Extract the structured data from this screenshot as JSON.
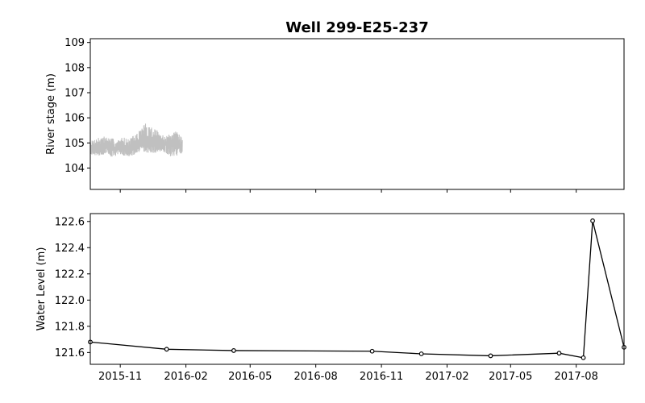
{
  "chart_data": [
    {
      "type": "line",
      "title": "Well 299-E25-237",
      "ylabel": "River stage (m)",
      "ylim": [
        103.15,
        109.15
      ],
      "yticks": [
        104,
        105,
        106,
        107,
        108,
        109
      ],
      "xlim": [
        "2015-09-20",
        "2017-10-07"
      ],
      "xticks": [
        "2015-11",
        "2016-02",
        "2016-05",
        "2016-08",
        "2016-11",
        "2017-02",
        "2017-05",
        "2017-08"
      ],
      "show_xtick_labels": false,
      "grid": false,
      "series": [
        {
          "color": "#c0c0c0",
          "x_range": [
            "2015-09-20",
            "2016-01-27"
          ],
          "envelope": [
            [
              "2015-09-20",
              104.8,
              104.55,
              105.05
            ],
            [
              "2015-09-28",
              104.8,
              104.5,
              105.2
            ],
            [
              "2015-10-05",
              104.75,
              104.5,
              105.3
            ],
            [
              "2015-10-12",
              104.9,
              104.55,
              105.25
            ],
            [
              "2015-10-20",
              104.8,
              104.45,
              105.2
            ],
            [
              "2015-10-28",
              104.75,
              104.5,
              105.1
            ],
            [
              "2015-11-05",
              104.85,
              104.5,
              105.25
            ],
            [
              "2015-11-12",
              104.8,
              104.45,
              105.15
            ],
            [
              "2015-11-20",
              104.8,
              104.5,
              105.3
            ],
            [
              "2015-11-28",
              105.0,
              104.6,
              105.5
            ],
            [
              "2015-12-05",
              105.1,
              104.6,
              105.8
            ],
            [
              "2015-12-12",
              105.0,
              104.6,
              105.75
            ],
            [
              "2015-12-20",
              104.95,
              104.6,
              105.6
            ],
            [
              "2015-12-28",
              104.9,
              104.55,
              105.3
            ],
            [
              "2016-01-05",
              105.0,
              104.55,
              105.35
            ],
            [
              "2016-01-12",
              104.95,
              104.45,
              105.3
            ],
            [
              "2016-01-20",
              104.9,
              104.5,
              105.6
            ],
            [
              "2016-01-27",
              104.85,
              104.6,
              105.2
            ]
          ]
        }
      ]
    },
    {
      "type": "line",
      "title": "",
      "ylabel": "Water Level (m)",
      "xlabel": "",
      "ylim": [
        121.51,
        122.66
      ],
      "yticks": [
        121.6,
        121.8,
        122.0,
        122.2,
        122.4,
        122.6
      ],
      "xlim": [
        "2015-09-20",
        "2017-10-07"
      ],
      "xticks": [
        "2015-11",
        "2016-02",
        "2016-05",
        "2016-08",
        "2016-11",
        "2017-02",
        "2017-05",
        "2017-08"
      ],
      "grid": false,
      "series": [
        {
          "color": "#000000",
          "marker": "circle-open",
          "x": [
            "2015-09-20",
            "2016-01-05",
            "2016-04-08",
            "2016-10-19",
            "2016-12-27",
            "2017-04-03",
            "2017-07-08",
            "2017-08-11",
            "2017-08-24",
            "2017-10-07"
          ],
          "y": [
            121.68,
            121.625,
            121.615,
            121.61,
            121.59,
            121.575,
            121.595,
            121.56,
            122.605,
            121.64
          ]
        }
      ]
    }
  ]
}
